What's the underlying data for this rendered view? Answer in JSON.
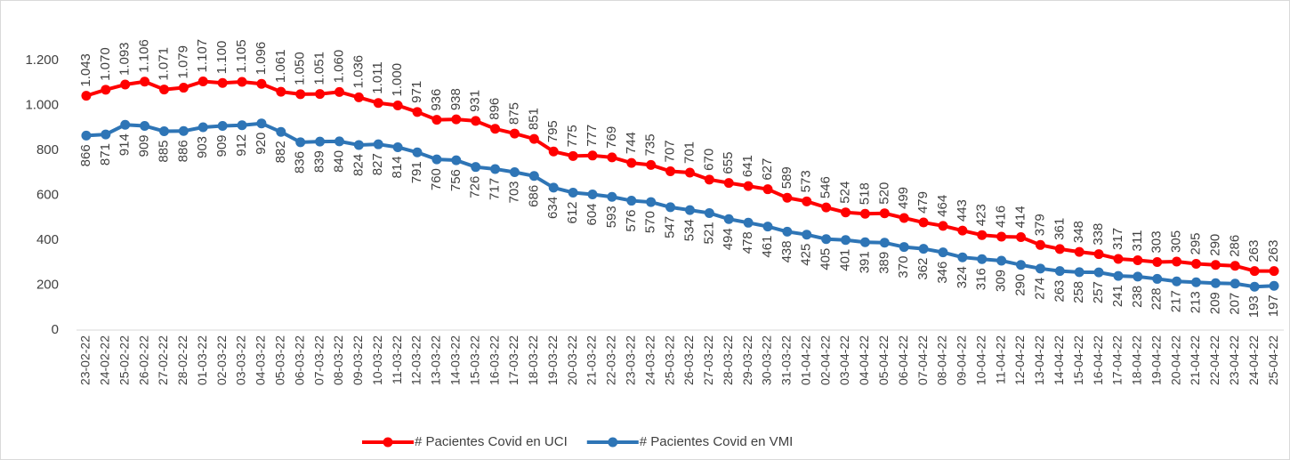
{
  "chart_data": {
    "type": "line",
    "categories": [
      "23-02-22",
      "24-02-22",
      "25-02-22",
      "26-02-22",
      "27-02-22",
      "28-02-22",
      "01-03-22",
      "02-03-22",
      "03-03-22",
      "04-03-22",
      "05-03-22",
      "06-03-22",
      "07-03-22",
      "08-03-22",
      "09-03-22",
      "10-03-22",
      "11-03-22",
      "12-03-22",
      "13-03-22",
      "14-03-22",
      "15-03-22",
      "16-03-22",
      "17-03-22",
      "18-03-22",
      "19-03-22",
      "20-03-22",
      "21-03-22",
      "22-03-22",
      "23-03-22",
      "24-03-22",
      "25-03-22",
      "26-03-22",
      "27-03-22",
      "28-03-22",
      "29-03-22",
      "30-03-22",
      "31-03-22",
      "01-04-22",
      "02-04-22",
      "03-04-22",
      "04-04-22",
      "05-04-22",
      "06-04-22",
      "07-04-22",
      "08-04-22",
      "09-04-22",
      "10-04-22",
      "11-04-22",
      "12-04-22",
      "13-04-22",
      "14-04-22",
      "15-04-22",
      "16-04-22",
      "17-04-22",
      "18-04-22",
      "19-04-22",
      "20-04-22",
      "21-04-22",
      "22-04-22",
      "23-04-22",
      "24-04-22",
      "25-04-22"
    ],
    "series": [
      {
        "name": "# Pacientes Covid en UCI",
        "color": "#ff0000",
        "values": [
          1043,
          1070,
          1093,
          1106,
          1071,
          1079,
          1107,
          1100,
          1105,
          1096,
          1061,
          1050,
          1051,
          1060,
          1036,
          1011,
          1000,
          971,
          936,
          938,
          931,
          896,
          875,
          851,
          795,
          775,
          777,
          769,
          744,
          735,
          707,
          701,
          670,
          655,
          641,
          627,
          589,
          573,
          546,
          524,
          518,
          520,
          499,
          479,
          464,
          443,
          423,
          416,
          414,
          379,
          361,
          348,
          338,
          317,
          311,
          303,
          305,
          295,
          290,
          286,
          263,
          263
        ],
        "value_labels": [
          "1.043",
          "1.070",
          "1.093",
          "1.106",
          "1.071",
          "1.079",
          "1.107",
          "1.100",
          "1.105",
          "1.096",
          "1.061",
          "1.050",
          "1.051",
          "1.060",
          "1.036",
          "1.011",
          "1.000",
          "971",
          "936",
          "938",
          "931",
          "896",
          "875",
          "851",
          "795",
          "775",
          "777",
          "769",
          "744",
          "735",
          "707",
          "701",
          "670",
          "655",
          "641",
          "627",
          "589",
          "573",
          "546",
          "524",
          "518",
          "520",
          "499",
          "479",
          "464",
          "443",
          "423",
          "416",
          "414",
          "379",
          "361",
          "348",
          "338",
          "317",
          "311",
          "303",
          "305",
          "295",
          "290",
          "286",
          "263",
          "263"
        ],
        "label_position": "above"
      },
      {
        "name": "# Pacientes Covid en VMI",
        "color": "#2e75b6",
        "values": [
          866,
          871,
          914,
          909,
          885,
          886,
          903,
          909,
          912,
          920,
          882,
          836,
          839,
          840,
          824,
          827,
          814,
          791,
          760,
          756,
          726,
          717,
          703,
          686,
          634,
          612,
          604,
          593,
          576,
          570,
          547,
          534,
          521,
          494,
          478,
          461,
          438,
          425,
          405,
          401,
          391,
          389,
          370,
          362,
          346,
          324,
          316,
          309,
          290,
          274,
          263,
          258,
          257,
          241,
          238,
          228,
          217,
          213,
          209,
          207,
          193,
          197
        ],
        "label_position": "below"
      }
    ],
    "ylim": [
      0,
      1200
    ],
    "yticks": [
      0,
      200,
      400,
      600,
      800,
      {
        "value": 1000,
        "label": "1.000"
      },
      {
        "value": 1200,
        "label": "1.200"
      }
    ],
    "grid": false,
    "legend": "bottom"
  }
}
